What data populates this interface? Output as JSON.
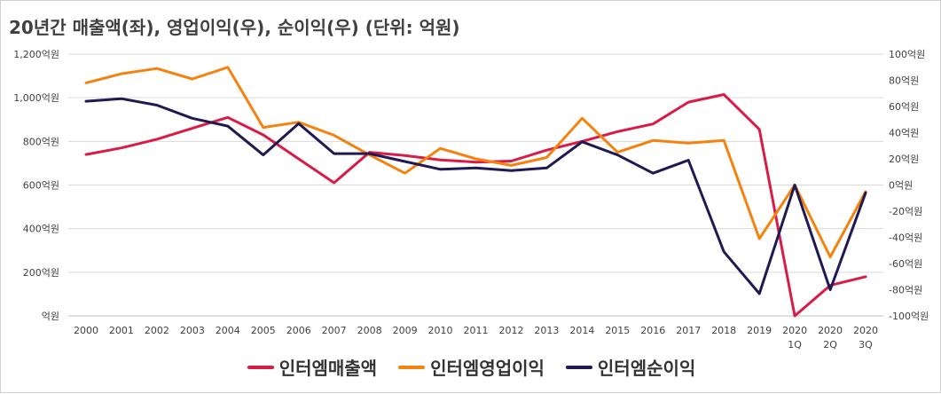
{
  "chart_data": {
    "type": "line",
    "title": "20년간 매출액(좌), 영업이익(우), 순이익(우) (단위: 억원)",
    "categories": [
      [
        "2000"
      ],
      [
        "2001"
      ],
      [
        "2002"
      ],
      [
        "2003"
      ],
      [
        "2004"
      ],
      [
        "2005"
      ],
      [
        "2006"
      ],
      [
        "2007"
      ],
      [
        "2008"
      ],
      [
        "2009"
      ],
      [
        "2010"
      ],
      [
        "2011"
      ],
      [
        "2012"
      ],
      [
        "2013"
      ],
      [
        "2014"
      ],
      [
        "2015"
      ],
      [
        "2016"
      ],
      [
        "2017"
      ],
      [
        "2018"
      ],
      [
        "2019"
      ],
      [
        "2020",
        "1Q"
      ],
      [
        "2020",
        "2Q"
      ],
      [
        "2020",
        "3Q"
      ]
    ],
    "left_axis": {
      "ticks": [
        "억원",
        "200억원",
        "400억원",
        "600억원",
        "800억원",
        "1,000억원",
        "1,200억원"
      ],
      "ylim": [
        0,
        1200
      ]
    },
    "right_axis": {
      "ticks": [
        "-100억원",
        "-80억원",
        "-60억원",
        "-40억원",
        "-20억원",
        "0억원",
        "20억원",
        "40억원",
        "60억원",
        "80억원",
        "100억원"
      ],
      "ylim": [
        -100,
        100
      ]
    },
    "grid": "horizontal",
    "legend_position": "bottom",
    "series": [
      {
        "name": "인터엠매출액",
        "axis": "left",
        "color": "#d81b47",
        "values": [
          740,
          770,
          810,
          860,
          910,
          830,
          720,
          610,
          750,
          735,
          715,
          705,
          710,
          760,
          800,
          845,
          880,
          980,
          1015,
          855,
          0,
          140,
          180
        ]
      },
      {
        "name": "인터엠영업이익",
        "axis": "right",
        "color": "#f5820f",
        "values": [
          78,
          85,
          89,
          81,
          90,
          44,
          48,
          38,
          23,
          9,
          28,
          20,
          15,
          21,
          51,
          25,
          34,
          32,
          34,
          -41,
          0,
          -55,
          -5
        ]
      },
      {
        "name": "인터엠순이익",
        "axis": "right",
        "color": "#1f1a52",
        "values": [
          64,
          66,
          61,
          51,
          45,
          23,
          47,
          24,
          24,
          18,
          12,
          13,
          11,
          13,
          33,
          23,
          9,
          19,
          -51,
          -83,
          0,
          -80,
          -6
        ]
      }
    ]
  }
}
